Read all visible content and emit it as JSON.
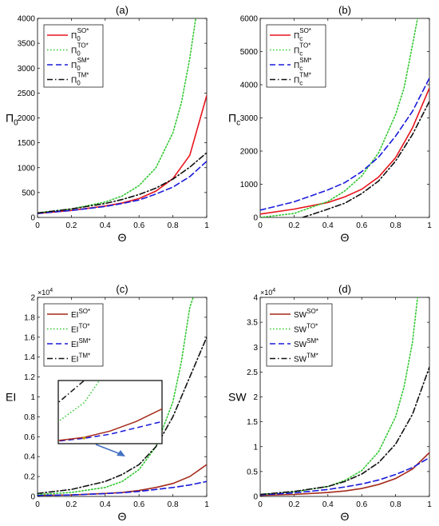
{
  "chart_data": [
    {
      "type": "line",
      "panel_label": "(a)",
      "xlabel": "Θ",
      "ylabel": "Π",
      "ylabel_sub": "0",
      "xlim": [
        0,
        1
      ],
      "ylim": [
        0,
        4000
      ],
      "xticks": [
        "0",
        "0.2",
        "0.4",
        "0.6",
        "0.8",
        "1"
      ],
      "yticks": [
        "0",
        "500",
        "1000",
        "1500",
        "2000",
        "2500",
        "3000",
        "3500",
        "4000"
      ],
      "legend_position": "top-left",
      "series": [
        {
          "name": "Π",
          "sub": "0",
          "sup": "SO*",
          "color": "#e8141b",
          "dash": "solid",
          "x": [
            0,
            0.2,
            0.4,
            0.5,
            0.6,
            0.7,
            0.8,
            0.9,
            1.0
          ],
          "y": [
            80,
            140,
            230,
            290,
            380,
            530,
            780,
            1250,
            2450
          ]
        },
        {
          "name": "Π",
          "sub": "0",
          "sup": "TO*",
          "color": "#2fc72f",
          "dash": "dot",
          "x": [
            0,
            0.2,
            0.4,
            0.5,
            0.6,
            0.7,
            0.8,
            0.85,
            0.9,
            0.935
          ],
          "y": [
            90,
            170,
            310,
            430,
            640,
            1000,
            1700,
            2300,
            3200,
            4000
          ]
        },
        {
          "name": "Π",
          "sub": "0",
          "sup": "SM*",
          "color": "#1a1adb",
          "dash": "dash",
          "x": [
            0,
            0.2,
            0.4,
            0.5,
            0.6,
            0.7,
            0.8,
            0.9,
            1.0
          ],
          "y": [
            80,
            140,
            220,
            280,
            350,
            470,
            610,
            820,
            1130
          ]
        },
        {
          "name": "Π",
          "sub": "0",
          "sup": "TM*",
          "color": "#111111",
          "dash": "dashdot",
          "x": [
            0,
            0.2,
            0.4,
            0.5,
            0.6,
            0.7,
            0.8,
            0.9,
            1.0
          ],
          "y": [
            90,
            170,
            280,
            360,
            460,
            590,
            770,
            1010,
            1300
          ]
        }
      ]
    },
    {
      "type": "line",
      "panel_label": "(b)",
      "xlabel": "Θ",
      "ylabel": "Π",
      "ylabel_sub": "c",
      "xlim": [
        0,
        1
      ],
      "ylim": [
        0,
        6000
      ],
      "xticks": [
        "0",
        "0.2",
        "0.4",
        "0.6",
        "0.8",
        "1"
      ],
      "yticks": [
        "0",
        "1000",
        "2000",
        "3000",
        "4000",
        "5000",
        "6000"
      ],
      "legend_position": "top-left",
      "series": [
        {
          "name": "Π",
          "sub": "c",
          "sup": "SO*",
          "color": "#e8141b",
          "dash": "solid",
          "x": [
            0,
            0.2,
            0.4,
            0.5,
            0.6,
            0.7,
            0.8,
            0.9,
            1.0
          ],
          "y": [
            100,
            250,
            450,
            620,
            850,
            1220,
            1800,
            2700,
            3900
          ]
        },
        {
          "name": "Π",
          "sub": "c",
          "sup": "TO*",
          "color": "#2fc72f",
          "dash": "dot",
          "x": [
            0,
            0.2,
            0.4,
            0.5,
            0.6,
            0.7,
            0.8,
            0.85,
            0.9,
            0.93
          ],
          "y": [
            0,
            120,
            480,
            800,
            1250,
            1950,
            3100,
            3900,
            5200,
            6000
          ]
        },
        {
          "name": "Π",
          "sub": "c",
          "sup": "SM*",
          "color": "#1a1adb",
          "dash": "dash",
          "x": [
            0,
            0.2,
            0.4,
            0.5,
            0.6,
            0.7,
            0.8,
            0.9,
            1.0
          ],
          "y": [
            220,
            470,
            830,
            1050,
            1380,
            1820,
            2450,
            3200,
            4200
          ]
        },
        {
          "name": "Π",
          "sub": "c",
          "sup": "TM*",
          "color": "#111111",
          "dash": "dashdot",
          "x": [
            0.25,
            0.3,
            0.4,
            0.5,
            0.6,
            0.7,
            0.8,
            0.9,
            1.0
          ],
          "y": [
            0,
            80,
            250,
            430,
            720,
            1100,
            1700,
            2500,
            3500
          ]
        }
      ]
    },
    {
      "type": "line",
      "panel_label": "(c)",
      "xlabel": "Θ",
      "ylabel": "EI",
      "exponent_label": "×10",
      "exponent_value": "4",
      "xlim": [
        0,
        1
      ],
      "ylim": [
        0,
        2
      ],
      "xticks": [
        "0",
        "0.2",
        "0.4",
        "0.6",
        "0.8",
        "1"
      ],
      "yticks": [
        "0",
        "0.2",
        "0.4",
        "0.6",
        "0.8",
        "1",
        "1.2",
        "1.4",
        "1.6",
        "1.8",
        "2"
      ],
      "legend_position": "top-left",
      "inset": true,
      "series": [
        {
          "name": "EI",
          "sup": "SO*",
          "color": "#a52a1a",
          "dash": "solid",
          "x": [
            0,
            0.2,
            0.4,
            0.5,
            0.6,
            0.7,
            0.8,
            0.9,
            1.0
          ],
          "y": [
            0.01,
            0.015,
            0.03,
            0.04,
            0.06,
            0.09,
            0.13,
            0.2,
            0.32
          ]
        },
        {
          "name": "EI",
          "sup": "TO*",
          "color": "#2fc72f",
          "dash": "dot",
          "x": [
            0,
            0.2,
            0.4,
            0.5,
            0.6,
            0.7,
            0.8,
            0.85,
            0.9,
            0.92
          ],
          "y": [
            0.02,
            0.04,
            0.09,
            0.15,
            0.27,
            0.5,
            0.95,
            1.35,
            1.9,
            2.0
          ]
        },
        {
          "name": "EI",
          "sup": "SM*",
          "color": "#1a1adb",
          "dash": "dash",
          "x": [
            0,
            0.2,
            0.4,
            0.5,
            0.6,
            0.7,
            0.8,
            0.9,
            1.0
          ],
          "y": [
            0.01,
            0.015,
            0.028,
            0.037,
            0.05,
            0.07,
            0.09,
            0.115,
            0.15
          ]
        },
        {
          "name": "EI",
          "sup": "TM*",
          "color": "#111111",
          "dash": "dashdot",
          "x": [
            0,
            0.2,
            0.4,
            0.5,
            0.6,
            0.7,
            0.8,
            0.9,
            1.0
          ],
          "y": [
            0.03,
            0.07,
            0.15,
            0.22,
            0.32,
            0.5,
            0.8,
            1.2,
            1.6
          ]
        }
      ]
    },
    {
      "type": "line",
      "panel_label": "(d)",
      "xlabel": "Θ",
      "ylabel": "SW",
      "exponent_label": "×10",
      "exponent_value": "4",
      "xlim": [
        0,
        1
      ],
      "ylim": [
        0,
        4
      ],
      "xticks": [
        "0",
        "0.2",
        "0.4",
        "0.6",
        "0.8",
        "1"
      ],
      "yticks": [
        "0",
        "0.5",
        "1",
        "1.5",
        "2",
        "2.5",
        "3",
        "3.5",
        "4"
      ],
      "legend_position": "top-left",
      "series": [
        {
          "name": "SW",
          "sup": "SO*",
          "color": "#a52a1a",
          "dash": "solid",
          "x": [
            0,
            0.2,
            0.4,
            0.5,
            0.6,
            0.7,
            0.8,
            0.9,
            1.0
          ],
          "y": [
            0.02,
            0.04,
            0.08,
            0.11,
            0.16,
            0.24,
            0.36,
            0.55,
            0.88
          ]
        },
        {
          "name": "SW",
          "sup": "TO*",
          "color": "#2fc72f",
          "dash": "dot",
          "x": [
            0,
            0.2,
            0.4,
            0.5,
            0.6,
            0.7,
            0.8,
            0.85,
            0.9,
            0.93
          ],
          "y": [
            0.04,
            0.09,
            0.2,
            0.32,
            0.52,
            0.9,
            1.6,
            2.2,
            3.1,
            4.0
          ]
        },
        {
          "name": "SW",
          "sup": "SM*",
          "color": "#1a1adb",
          "dash": "dash",
          "x": [
            0,
            0.2,
            0.4,
            0.5,
            0.6,
            0.7,
            0.8,
            0.9,
            1.0
          ],
          "y": [
            0.03,
            0.07,
            0.14,
            0.19,
            0.25,
            0.33,
            0.44,
            0.58,
            0.78
          ]
        },
        {
          "name": "SW",
          "sup": "TM*",
          "color": "#111111",
          "dash": "dashdot",
          "x": [
            0,
            0.2,
            0.4,
            0.5,
            0.6,
            0.7,
            0.8,
            0.9,
            1.0
          ],
          "y": [
            0.04,
            0.1,
            0.2,
            0.3,
            0.45,
            0.68,
            1.05,
            1.65,
            2.6
          ]
        }
      ]
    }
  ]
}
